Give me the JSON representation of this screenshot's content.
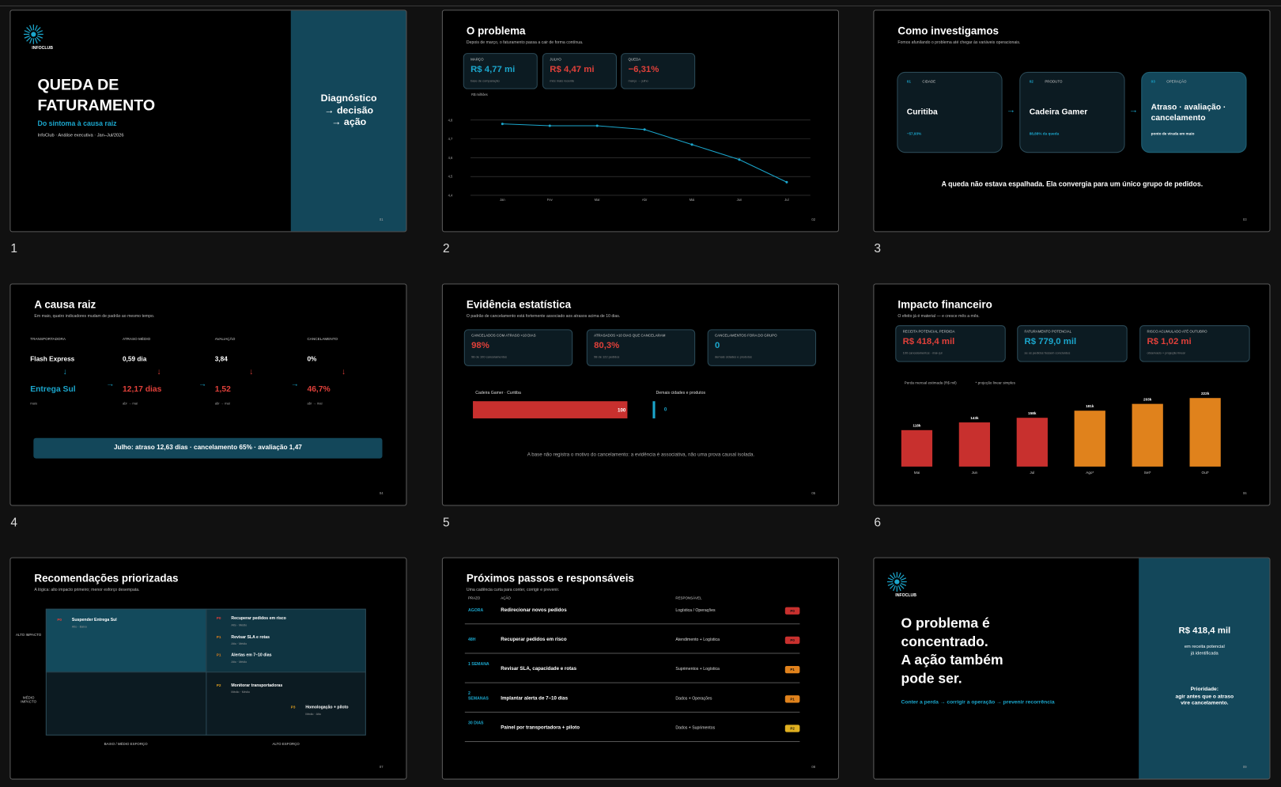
{
  "slides": [
    {
      "number": "1",
      "page": "01",
      "logo": "INFOCLUB",
      "title": [
        "QUEDA DE",
        "FATURAMENTO"
      ],
      "subtitle": "Do sintoma à causa raiz",
      "meta": "InfoClub · Análise executiva · Jan–Jul/2026",
      "side": [
        "Diagnóstico",
        "→ decisão",
        "→ ação"
      ]
    },
    {
      "number": "2",
      "page": "02",
      "title": "O problema",
      "subtitle": "Depois de março, o faturamento passa a cair de forma contínua.",
      "cards": [
        {
          "label": "MARÇO",
          "value": "R$ 4,77 mi",
          "note": "base de comparação"
        },
        {
          "label": "JULHO",
          "value": "R$ 4,47 mi",
          "note": "mês mais recente"
        },
        {
          "label": "QUEDA",
          "value": "−6,31%",
          "note": "março → julho"
        }
      ],
      "chart_data": {
        "type": "line",
        "ylabel": "R$ milhões",
        "categories": [
          "Jan",
          "Fev",
          "Mar",
          "Abr",
          "Mai",
          "Jun",
          "Jul"
        ],
        "values": [
          4.78,
          4.77,
          4.77,
          4.75,
          4.67,
          4.59,
          4.47
        ],
        "color": "#1ba6cc",
        "ylim": [
          4.4,
          4.8
        ],
        "yticks": [
          {
            "value": 4.4,
            "label": "4,4"
          },
          {
            "value": 4.5,
            "label": "4,5"
          },
          {
            "value": 4.6,
            "label": "4,6"
          },
          {
            "value": 4.7,
            "label": "4,7"
          },
          {
            "value": 4.8,
            "label": "4,8"
          }
        ],
        "grid": true
      }
    },
    {
      "number": "3",
      "page": "03",
      "title": "Como investigamos",
      "subtitle": "Fomos afunilando o problema até chegar às variáveis operacionais.",
      "steps": [
        {
          "num": "01",
          "tag": "CIDADE",
          "title": "Curitiba",
          "note": "−57,93%"
        },
        {
          "num": "02",
          "tag": "PRODUTO",
          "title": "Cadeira Gamer",
          "note": "88,88% da queda"
        },
        {
          "num": "03",
          "tag": "OPERAÇÃO",
          "title": "Atraso · avaliação · cancelamento",
          "note": "ponto de virada em maio"
        }
      ],
      "conclusion": "A queda não estava espalhada. Ela convergia para um único grupo de pedidos."
    },
    {
      "number": "4",
      "page": "04",
      "title": "A causa raiz",
      "subtitle": "Em maio, quatro indicadores mudam de padrão ao mesmo tempo.",
      "headers": [
        "TRANSPORTADORA",
        "ATRASO MÉDIO",
        "AVALIAÇÃO",
        "CANCELAMENTO"
      ],
      "before": [
        "Flash Express",
        "0,59 dia",
        "3,84",
        "0%"
      ],
      "after": [
        "Entrega Sul",
        "12,17 dias",
        "1,52",
        "46,7%"
      ],
      "notes": [
        "maio",
        "abr → mai",
        "abr → mai",
        "abr → mai"
      ],
      "banner": "Julho: atraso 12,63 dias · cancelamento 65% · avaliação 1,47"
    },
    {
      "number": "5",
      "page": "05",
      "title": "Evidência estatística",
      "subtitle": "O padrão de cancelamento está fortemente associado aos atrasos acima de 10 dias.",
      "cards": [
        {
          "label": "CANCELADOS COM ATRASO >10 DIAS",
          "value": "98%",
          "note": "98 de 100 cancelamentos"
        },
        {
          "label": "ATRASADOS >10 DIAS QUE CANCELARAM",
          "value": "80,3%",
          "note": "98 de 122 pedidos"
        },
        {
          "label": "CANCELAMENTOS FORA DO GRUPO",
          "value": "0",
          "note": "demais cidades e produtos"
        }
      ],
      "chart_data": {
        "type": "bar",
        "orientation": "horizontal",
        "categories": [
          "Cadeira Gamer · Curitiba",
          "Demais cidades e produtos"
        ],
        "values": [
          100,
          0
        ],
        "colors": [
          "#c8302e",
          "#1ba6cc"
        ],
        "xlim": [
          0,
          100
        ]
      },
      "footnote": "A base não registra o motivo do cancelamento: a evidência é associativa, não uma prova causal isolada."
    },
    {
      "number": "6",
      "page": "06",
      "title": "Impacto financeiro",
      "subtitle": "O efeito já é material — e cresce mês a mês.",
      "cards": [
        {
          "label": "RECEITA POTENCIAL PERDIDA",
          "value": "R$ 418,4 mil",
          "note": "100 cancelamentos · mai–jul"
        },
        {
          "label": "FATURAMENTO POTENCIAL",
          "value": "R$ 779,0 mil",
          "note": "se os pedidos fossem concluídos"
        },
        {
          "label": "RISCO ACUMULADO ATÉ OUTUBRO",
          "value": "R$ 1,02 mi",
          "note": "observado + projeção linear"
        }
      ],
      "chart_data": {
        "type": "bar",
        "title": "Perda mensal estimada (R$ mil)",
        "note": "* projeção linear simples",
        "categories": [
          "Mai",
          "Jun",
          "Jul",
          "Ago*",
          "Set*",
          "Out*"
        ],
        "values": [
          118,
          143,
          158,
          181,
          203,
          222
        ],
        "value_labels": [
          "118k",
          "143k",
          "158k",
          "181k",
          "203k",
          "222k"
        ],
        "colors": [
          "#c8302e",
          "#c8302e",
          "#c8302e",
          "#e0821c",
          "#e0821c",
          "#e0821c"
        ],
        "ylim": [
          0,
          250
        ]
      }
    },
    {
      "page": "07",
      "title": "Recomendações priorizadas",
      "subtitle": "A lógica: alto impacto primeiro; menor esforço desempata.",
      "rows": [
        "ALTO IMPACTO",
        "MÉDIO IMPACTO"
      ],
      "cols": [
        "BAIXO / MÉDIO ESFORÇO",
        "ALTO ESFORÇO"
      ],
      "items": [
        {
          "tag": "P0",
          "tag_color": "#e0403a",
          "text": "Suspender Entrega Sul",
          "note": "Alto · Baixo"
        },
        {
          "tag": "P0",
          "tag_color": "#e0403a",
          "text": "Recuperar pedidos em risco",
          "note": "Alto · Médio"
        },
        {
          "tag": "P1",
          "tag_color": "#e0821c",
          "text": "Revisar SLA e rotas",
          "note": "Alto · Médio"
        },
        {
          "tag": "P1",
          "tag_color": "#e0821c",
          "text": "Alertas em 7–10 dias",
          "note": "Alto · Médio"
        },
        {
          "tag": "P2",
          "tag_color": "#e0a020",
          "text": "Monitorar transportadoras",
          "note": "Médio · Médio"
        },
        {
          "tag": "P3",
          "tag_color": "#e0a020",
          "text": "Homologação + piloto",
          "note": "Médio · Alto"
        }
      ]
    },
    {
      "page": "08",
      "title": "Próximos passos e responsáveis",
      "subtitle": "Uma cadência curta para conter, corrigir e prevenir.",
      "headers": [
        "PRAZO",
        "AÇÃO",
        "RESPONSÁVEL"
      ],
      "rows": [
        {
          "when": "AGORA",
          "action": "Redirecionar novos pedidos",
          "owner": "Logística / Operações",
          "tag": "P0",
          "tag_color": "#c8302e"
        },
        {
          "when": "48H",
          "action": "Recuperar pedidos em risco",
          "owner": "Atendimento + Logística",
          "tag": "P0",
          "tag_color": "#c8302e"
        },
        {
          "when": "1 SEMANA",
          "action": "Revisar SLA, capacidade e rotas",
          "owner": "Suprimentos + Logística",
          "tag": "P1",
          "tag_color": "#e0821c"
        },
        {
          "when": "2 SEMANAS",
          "action": "Implantar alerta de 7–10 dias",
          "owner": "Dados + Operações",
          "tag": "P1",
          "tag_color": "#e0821c"
        },
        {
          "when": "30 DIAS",
          "action": "Painel por transportadora + piloto",
          "owner": "Dados + Suprimentos",
          "tag": "P2",
          "tag_color": "#e0b020"
        }
      ]
    },
    {
      "page": "09",
      "logo": "INFOCLUB",
      "headline": [
        "O problema é",
        "concentrado.",
        "A ação também",
        "pode ser."
      ],
      "flow": "Conter a perda → corrigir a operação → prevenir recorrência",
      "side_value": "R$ 418,4 mil",
      "side_note": [
        "em receita potencial",
        "já identificada"
      ],
      "priority": [
        "Prioridade:",
        "agir antes que o atraso",
        "vire cancelamento."
      ]
    }
  ]
}
